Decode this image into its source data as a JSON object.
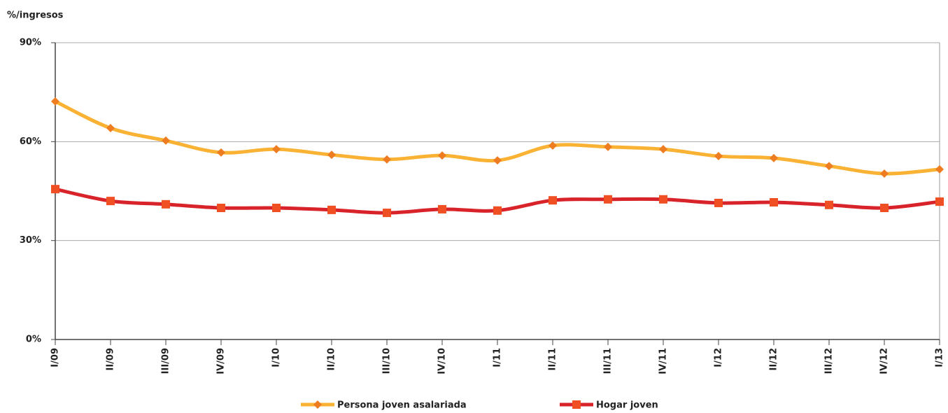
{
  "chart_data": {
    "type": "line",
    "y_axis_label": "%/ingresos",
    "categories": [
      "I/09",
      "II/09",
      "III/09",
      "IV/09",
      "I/10",
      "II/10",
      "III/10",
      "IV/10",
      "I/11",
      "II/11",
      "III/11",
      "IV/11",
      "I/12",
      "II/12",
      "III/12",
      "IV/12",
      "I/13"
    ],
    "series": [
      {
        "name": "Persona joven asalariada",
        "color": "#f9b233",
        "marker": "diamond",
        "marker_color": "#ee7d22",
        "values": [
          72.2,
          64.1,
          60.3,
          56.7,
          57.7,
          56.0,
          54.6,
          55.8,
          54.3,
          58.8,
          58.4,
          57.7,
          55.6,
          55.0,
          52.6,
          50.3,
          51.6
        ]
      },
      {
        "name": "Hogar joven",
        "color": "#d9232a",
        "marker": "square",
        "marker_color": "#f04e23",
        "values": [
          45.6,
          42.0,
          41.0,
          39.9,
          39.9,
          39.3,
          38.4,
          39.5,
          39.1,
          42.2,
          42.5,
          42.5,
          41.4,
          41.6,
          40.8,
          39.9,
          41.8
        ]
      }
    ],
    "ylim": [
      0,
      90
    ],
    "yticks": [
      {
        "value": 0,
        "label": "0%"
      },
      {
        "value": 30,
        "label": "30%"
      },
      {
        "value": 60,
        "label": "60%"
      },
      {
        "value": 90,
        "label": "90%"
      }
    ],
    "grid": true,
    "legend": "bottom"
  }
}
